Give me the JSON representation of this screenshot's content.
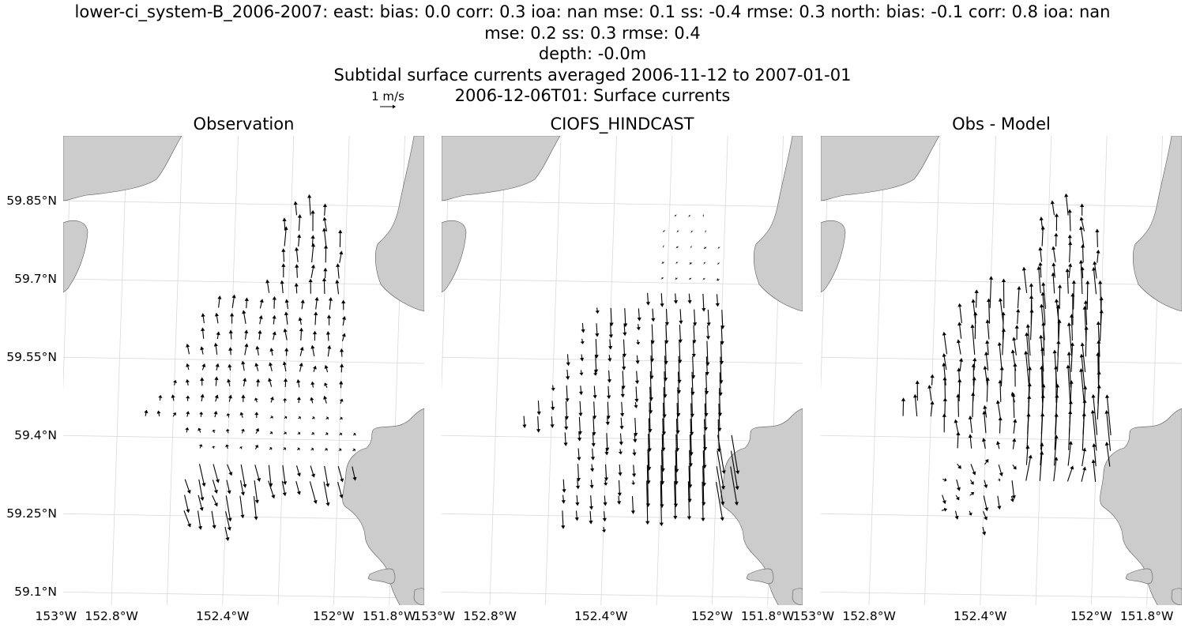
{
  "title_lines": [
    "lower-ci_system-B_2006-2007: east: bias: 0.0  corr: 0.3  ioa: nan  mse: 0.1  ss: -0.4  rmse: 0.3  north: bias: -0.1  corr: 0.8  ioa: nan",
    "mse: 0.2  ss: 0.3  rmse: 0.4",
    "depth: -0.0m",
    "Subtidal surface currents averaged 2006-11-12 to 2007-01-01",
    "2006-12-06T01: Surface currents"
  ],
  "quiver_key": {
    "label": "1 m/s",
    "speed": 1.0
  },
  "panels": [
    {
      "title": "Observation"
    },
    {
      "title": "CIOFS_HINDCAST"
    },
    {
      "title": "Obs - Model"
    }
  ],
  "lat_ticks": [
    {
      "value": 59.85,
      "label": "59.85°N"
    },
    {
      "value": 59.7,
      "label": "59.7°N"
    },
    {
      "value": 59.55,
      "label": "59.55°N"
    },
    {
      "value": 59.4,
      "label": "59.4°N"
    },
    {
      "value": 59.25,
      "label": "59.25°N"
    },
    {
      "value": 59.1,
      "label": "59.1°N"
    }
  ],
  "lon_ticks": [
    {
      "value": -153.0,
      "label": "153°W"
    },
    {
      "value": -152.8,
      "label": "152.8°W"
    },
    {
      "value": -152.4,
      "label": "152.4°W"
    },
    {
      "value": -152.0,
      "label": "152°W"
    },
    {
      "value": -151.8,
      "label": "151.8°W"
    }
  ],
  "map_extent": {
    "lon": [
      -153.0,
      -151.7
    ],
    "lat": [
      59.08,
      59.98
    ]
  },
  "land_color": "#cccccc",
  "arrow_color": "#000000",
  "current_rows": [
    {
      "lat": 59.83,
      "lon_start": -152.18,
      "lon_end": -152.05
    },
    {
      "lat": 59.8,
      "lon_start": -152.22,
      "lon_end": -152.05
    },
    {
      "lat": 59.77,
      "lon_start": -152.22,
      "lon_end": -152.0
    },
    {
      "lat": 59.74,
      "lon_start": -152.22,
      "lon_end": -152.0
    },
    {
      "lat": 59.71,
      "lon_start": -152.22,
      "lon_end": -152.0
    },
    {
      "lat": 59.68,
      "lon_start": -152.27,
      "lon_end": -152.0
    },
    {
      "lat": 59.65,
      "lon_start": -152.45,
      "lon_end": -152.0
    },
    {
      "lat": 59.62,
      "lon_start": -152.5,
      "lon_end": -152.0
    },
    {
      "lat": 59.59,
      "lon_start": -152.5,
      "lon_end": -152.0
    },
    {
      "lat": 59.56,
      "lon_start": -152.55,
      "lon_end": -152.0
    },
    {
      "lat": 59.53,
      "lon_start": -152.55,
      "lon_end": -152.0
    },
    {
      "lat": 59.5,
      "lon_start": -152.6,
      "lon_end": -152.0
    },
    {
      "lat": 59.47,
      "lon_start": -152.65,
      "lon_end": -152.0
    },
    {
      "lat": 59.44,
      "lon_start": -152.7,
      "lon_end": -152.0
    },
    {
      "lat": 59.41,
      "lon_start": -152.55,
      "lon_end": -151.95
    },
    {
      "lat": 59.38,
      "lon_start": -152.5,
      "lon_end": -151.95
    },
    {
      "lat": 59.35,
      "lon_start": -152.5,
      "lon_end": -151.95
    },
    {
      "lat": 59.32,
      "lon_start": -152.55,
      "lon_end": -152.0
    },
    {
      "lat": 59.29,
      "lon_start": -152.55,
      "lon_end": -152.3
    },
    {
      "lat": 59.26,
      "lon_start": -152.55,
      "lon_end": -152.4
    },
    {
      "lat": 59.23,
      "lon_start": -152.4,
      "lon_end": -152.4
    }
  ]
}
